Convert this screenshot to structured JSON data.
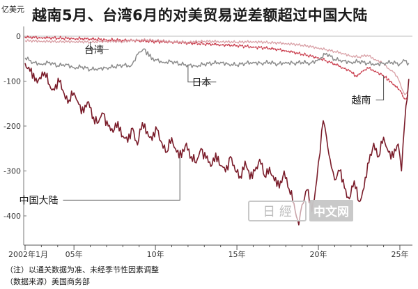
{
  "title": "越南5月、台湾6月的对美贸易逆差额超过中国大陆",
  "unit": "亿美元",
  "notes": [
    "（注）以通关数据为准、未经季节性因素调整",
    "（数据来源）美国商务部"
  ],
  "watermark": "中文网",
  "colors": {
    "china": "#7a1c2a",
    "japan": "#8c8c8c",
    "taiwan": "#d9a0a6",
    "vietnam": "#e8a0a8",
    "vietnam_dots": "#c2283a",
    "zero_line": "#bdbdbd"
  },
  "chart_data": {
    "type": "line",
    "title": "越南5月、台湾6月的对美贸易逆差额超过中国大陆",
    "ylabel": "亿美元",
    "ylim": [
      -440,
      20
    ],
    "xlim": [
      2002.0,
      2025.6
    ],
    "x_ticks": [
      {
        "x": 2002.0,
        "label": "2002年1月"
      },
      {
        "x": 2005.0,
        "label": "05年"
      },
      {
        "x": 2010.0,
        "label": "10年"
      },
      {
        "x": 2015.0,
        "label": "15年"
      },
      {
        "x": 2020.0,
        "label": "20年"
      },
      {
        "x": 2025.0,
        "label": "25年"
      }
    ],
    "y_ticks": [
      0,
      -100,
      -200,
      -300,
      -400
    ],
    "series": [
      {
        "name": "中国大陆",
        "key": "china",
        "values": [
          [
            2002.0,
            -60
          ],
          [
            2002.3,
            -78
          ],
          [
            2002.6,
            -100
          ],
          [
            2002.9,
            -92
          ],
          [
            2003.2,
            -80
          ],
          [
            2003.5,
            -108
          ],
          [
            2003.8,
            -120
          ],
          [
            2004.1,
            -102
          ],
          [
            2004.4,
            -128
          ],
          [
            2004.7,
            -142
          ],
          [
            2005.0,
            -126
          ],
          [
            2005.3,
            -152
          ],
          [
            2005.6,
            -170
          ],
          [
            2005.9,
            -146
          ],
          [
            2006.2,
            -180
          ],
          [
            2006.5,
            -192
          ],
          [
            2006.8,
            -172
          ],
          [
            2007.1,
            -200
          ],
          [
            2007.4,
            -214
          ],
          [
            2007.7,
            -190
          ],
          [
            2008.0,
            -222
          ],
          [
            2008.3,
            -236
          ],
          [
            2008.6,
            -205
          ],
          [
            2008.9,
            -242
          ],
          [
            2009.2,
            -192
          ],
          [
            2009.5,
            -212
          ],
          [
            2009.8,
            -232
          ],
          [
            2010.1,
            -208
          ],
          [
            2010.4,
            -238
          ],
          [
            2010.7,
            -258
          ],
          [
            2011.0,
            -226
          ],
          [
            2011.3,
            -258
          ],
          [
            2011.6,
            -270
          ],
          [
            2011.9,
            -238
          ],
          [
            2012.2,
            -268
          ],
          [
            2012.5,
            -282
          ],
          [
            2012.8,
            -250
          ],
          [
            2013.1,
            -272
          ],
          [
            2013.4,
            -290
          ],
          [
            2013.7,
            -260
          ],
          [
            2014.0,
            -288
          ],
          [
            2014.3,
            -302
          ],
          [
            2014.6,
            -268
          ],
          [
            2014.9,
            -300
          ],
          [
            2015.2,
            -312
          ],
          [
            2015.5,
            -278
          ],
          [
            2015.8,
            -318
          ],
          [
            2016.1,
            -300
          ],
          [
            2016.4,
            -274
          ],
          [
            2016.7,
            -312
          ],
          [
            2017.0,
            -292
          ],
          [
            2017.3,
            -322
          ],
          [
            2017.6,
            -338
          ],
          [
            2017.9,
            -300
          ],
          [
            2018.2,
            -340
          ],
          [
            2018.5,
            -372
          ],
          [
            2018.8,
            -420
          ],
          [
            2019.0,
            -375
          ],
          [
            2019.3,
            -342
          ],
          [
            2019.6,
            -390
          ],
          [
            2019.9,
            -320
          ],
          [
            2020.1,
            -260
          ],
          [
            2020.3,
            -188
          ],
          [
            2020.5,
            -225
          ],
          [
            2020.8,
            -292
          ],
          [
            2021.0,
            -320
          ],
          [
            2021.3,
            -300
          ],
          [
            2021.6,
            -338
          ],
          [
            2021.9,
            -362
          ],
          [
            2022.2,
            -322
          ],
          [
            2022.5,
            -368
          ],
          [
            2022.8,
            -338
          ],
          [
            2023.1,
            -282
          ],
          [
            2023.4,
            -238
          ],
          [
            2023.7,
            -268
          ],
          [
            2024.0,
            -225
          ],
          [
            2024.3,
            -258
          ],
          [
            2024.6,
            -270
          ],
          [
            2024.9,
            -240
          ],
          [
            2025.1,
            -300
          ],
          [
            2025.3,
            -190
          ],
          [
            2025.45,
            -140
          ],
          [
            2025.55,
            -95
          ]
        ]
      },
      {
        "name": "日本",
        "key": "japan",
        "values": [
          [
            2002.0,
            -48
          ],
          [
            2002.5,
            -58
          ],
          [
            2003.0,
            -62
          ],
          [
            2003.5,
            -58
          ],
          [
            2004.0,
            -66
          ],
          [
            2004.5,
            -62
          ],
          [
            2005.0,
            -70
          ],
          [
            2005.5,
            -68
          ],
          [
            2006.0,
            -74
          ],
          [
            2006.5,
            -72
          ],
          [
            2007.0,
            -70
          ],
          [
            2007.5,
            -68
          ],
          [
            2008.0,
            -64
          ],
          [
            2008.5,
            -66
          ],
          [
            2009.0,
            -35
          ],
          [
            2009.3,
            -28
          ],
          [
            2009.6,
            -45
          ],
          [
            2010.0,
            -52
          ],
          [
            2010.5,
            -58
          ],
          [
            2011.0,
            -56
          ],
          [
            2011.5,
            -62
          ],
          [
            2012.0,
            -64
          ],
          [
            2012.5,
            -66
          ],
          [
            2013.0,
            -62
          ],
          [
            2013.5,
            -60
          ],
          [
            2014.0,
            -58
          ],
          [
            2014.5,
            -62
          ],
          [
            2015.0,
            -64
          ],
          [
            2015.5,
            -60
          ],
          [
            2016.0,
            -58
          ],
          [
            2016.5,
            -60
          ],
          [
            2017.0,
            -58
          ],
          [
            2017.5,
            -62
          ],
          [
            2018.0,
            -58
          ],
          [
            2018.5,
            -60
          ],
          [
            2019.0,
            -58
          ],
          [
            2019.5,
            -60
          ],
          [
            2020.0,
            -52
          ],
          [
            2020.5,
            -38
          ],
          [
            2021.0,
            -52
          ],
          [
            2021.5,
            -54
          ],
          [
            2022.0,
            -58
          ],
          [
            2022.5,
            -56
          ],
          [
            2023.0,
            -60
          ],
          [
            2023.5,
            -62
          ],
          [
            2024.0,
            -60
          ],
          [
            2024.5,
            -58
          ],
          [
            2025.0,
            -62
          ],
          [
            2025.3,
            -55
          ],
          [
            2025.55,
            -60
          ]
        ]
      },
      {
        "name": "台湾",
        "key": "taiwan",
        "values": [
          [
            2002.0,
            -10
          ],
          [
            2003.0,
            -11
          ],
          [
            2004.0,
            -12
          ],
          [
            2005.0,
            -12
          ],
          [
            2006.0,
            -13
          ],
          [
            2007.0,
            -11
          ],
          [
            2008.0,
            -12
          ],
          [
            2009.0,
            -8
          ],
          [
            2010.0,
            -9
          ],
          [
            2011.0,
            -12
          ],
          [
            2012.0,
            -13
          ],
          [
            2013.0,
            -11
          ],
          [
            2014.0,
            -12
          ],
          [
            2015.0,
            -13
          ],
          [
            2016.0,
            -12
          ],
          [
            2017.0,
            -14
          ],
          [
            2018.0,
            -16
          ],
          [
            2019.0,
            -20
          ],
          [
            2020.0,
            -26
          ],
          [
            2020.5,
            -30
          ],
          [
            2021.0,
            -34
          ],
          [
            2021.5,
            -38
          ],
          [
            2022.0,
            -44
          ],
          [
            2022.5,
            -46
          ],
          [
            2023.0,
            -42
          ],
          [
            2023.5,
            -52
          ],
          [
            2024.0,
            -60
          ],
          [
            2024.3,
            -72
          ],
          [
            2024.6,
            -80
          ],
          [
            2024.9,
            -95
          ],
          [
            2025.1,
            -115
          ],
          [
            2025.3,
            -130
          ],
          [
            2025.5,
            -120
          ]
        ]
      },
      {
        "name": "越南",
        "key": "vietnam",
        "values": [
          [
            2002.0,
            -2
          ],
          [
            2003.0,
            -3
          ],
          [
            2004.0,
            -4
          ],
          [
            2005.0,
            -5
          ],
          [
            2006.0,
            -6
          ],
          [
            2007.0,
            -8
          ],
          [
            2008.0,
            -9
          ],
          [
            2009.0,
            -10
          ],
          [
            2010.0,
            -12
          ],
          [
            2011.0,
            -13
          ],
          [
            2012.0,
            -15
          ],
          [
            2013.0,
            -17
          ],
          [
            2014.0,
            -19
          ],
          [
            2015.0,
            -21
          ],
          [
            2016.0,
            -24
          ],
          [
            2017.0,
            -27
          ],
          [
            2018.0,
            -32
          ],
          [
            2019.0,
            -40
          ],
          [
            2020.0,
            -48
          ],
          [
            2020.5,
            -55
          ],
          [
            2021.0,
            -62
          ],
          [
            2021.5,
            -70
          ],
          [
            2022.0,
            -78
          ],
          [
            2022.3,
            -88
          ],
          [
            2022.6,
            -82
          ],
          [
            2023.0,
            -70
          ],
          [
            2023.5,
            -78
          ],
          [
            2024.0,
            -88
          ],
          [
            2024.3,
            -95
          ],
          [
            2024.6,
            -108
          ],
          [
            2024.9,
            -118
          ],
          [
            2025.1,
            -125
          ],
          [
            2025.3,
            -140
          ],
          [
            2025.5,
            -130
          ]
        ]
      }
    ],
    "annotations": [
      {
        "text": "台湾",
        "series": "taiwan",
        "at": [
          2006.0,
          -12
        ],
        "label_at": [
          2007.0,
          -30
        ]
      },
      {
        "text": "日本",
        "series": "japan",
        "at": [
          2012.0,
          -64
        ],
        "label_at": [
          2013.6,
          -102
        ]
      },
      {
        "text": "越南",
        "series": "vietnam",
        "at": [
          2024.0,
          -88
        ],
        "label_at": [
          2023.4,
          -142
        ]
      },
      {
        "text": "中国大陆",
        "series": "china",
        "at": [
          2011.5,
          -270
        ],
        "label_at": [
          2004.2,
          -365
        ]
      }
    ]
  }
}
